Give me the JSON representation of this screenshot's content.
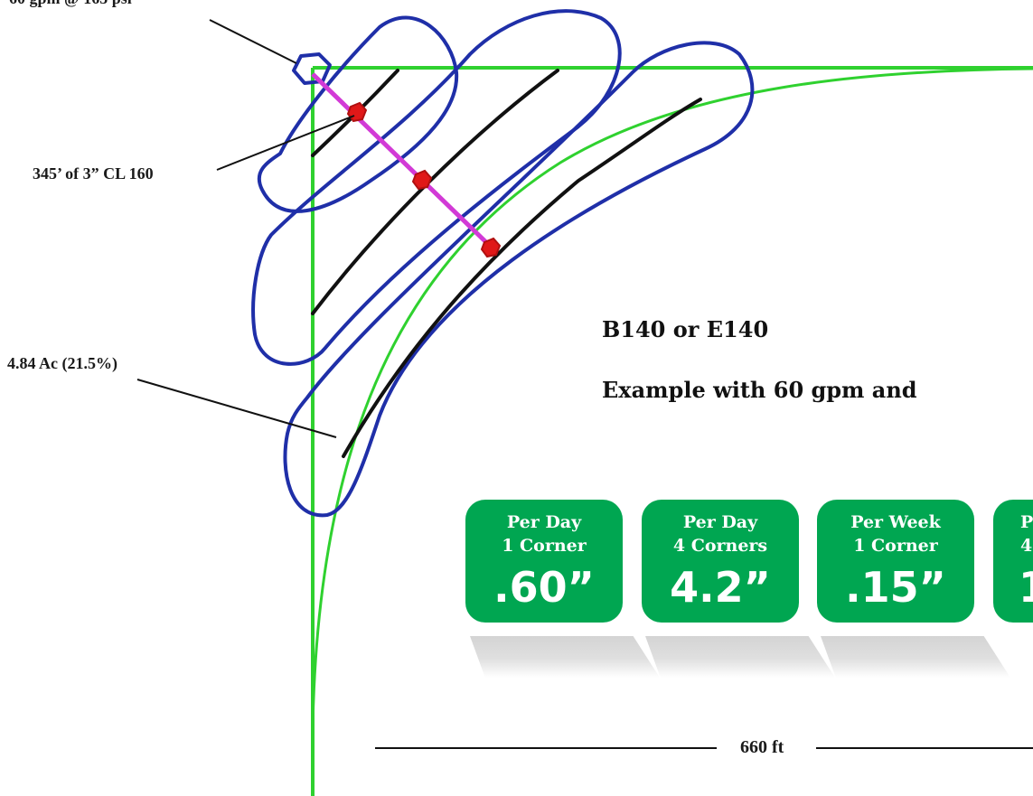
{
  "labels": {
    "flow": "60 gpm @ 165 psi",
    "pipe": "345’ of 3” CL 160",
    "area": "4.84 Ac (21.5%)",
    "scale": "660 ft"
  },
  "heading": {
    "model": "B140 or E140",
    "example": "Example with 60 gpm and"
  },
  "cards": [
    {
      "line1": "Per Day",
      "line2": "1 Corner",
      "value": ".60”"
    },
    {
      "line1": "Per Day",
      "line2": "4 Corners",
      "value": "4.2”"
    },
    {
      "line1": "Per Week",
      "line2": "1 Corner",
      "value": ".15”"
    },
    {
      "line1": "P",
      "line2": "4",
      "value": "1"
    }
  ],
  "colors": {
    "field_boundary": "#2fd12f",
    "wetted_outline": "#1f2fa8",
    "travel_path": "#111111",
    "supply_pipe": "#d23ad6",
    "sprinkler_station": "#e01818",
    "card_fill": "#00a651"
  }
}
